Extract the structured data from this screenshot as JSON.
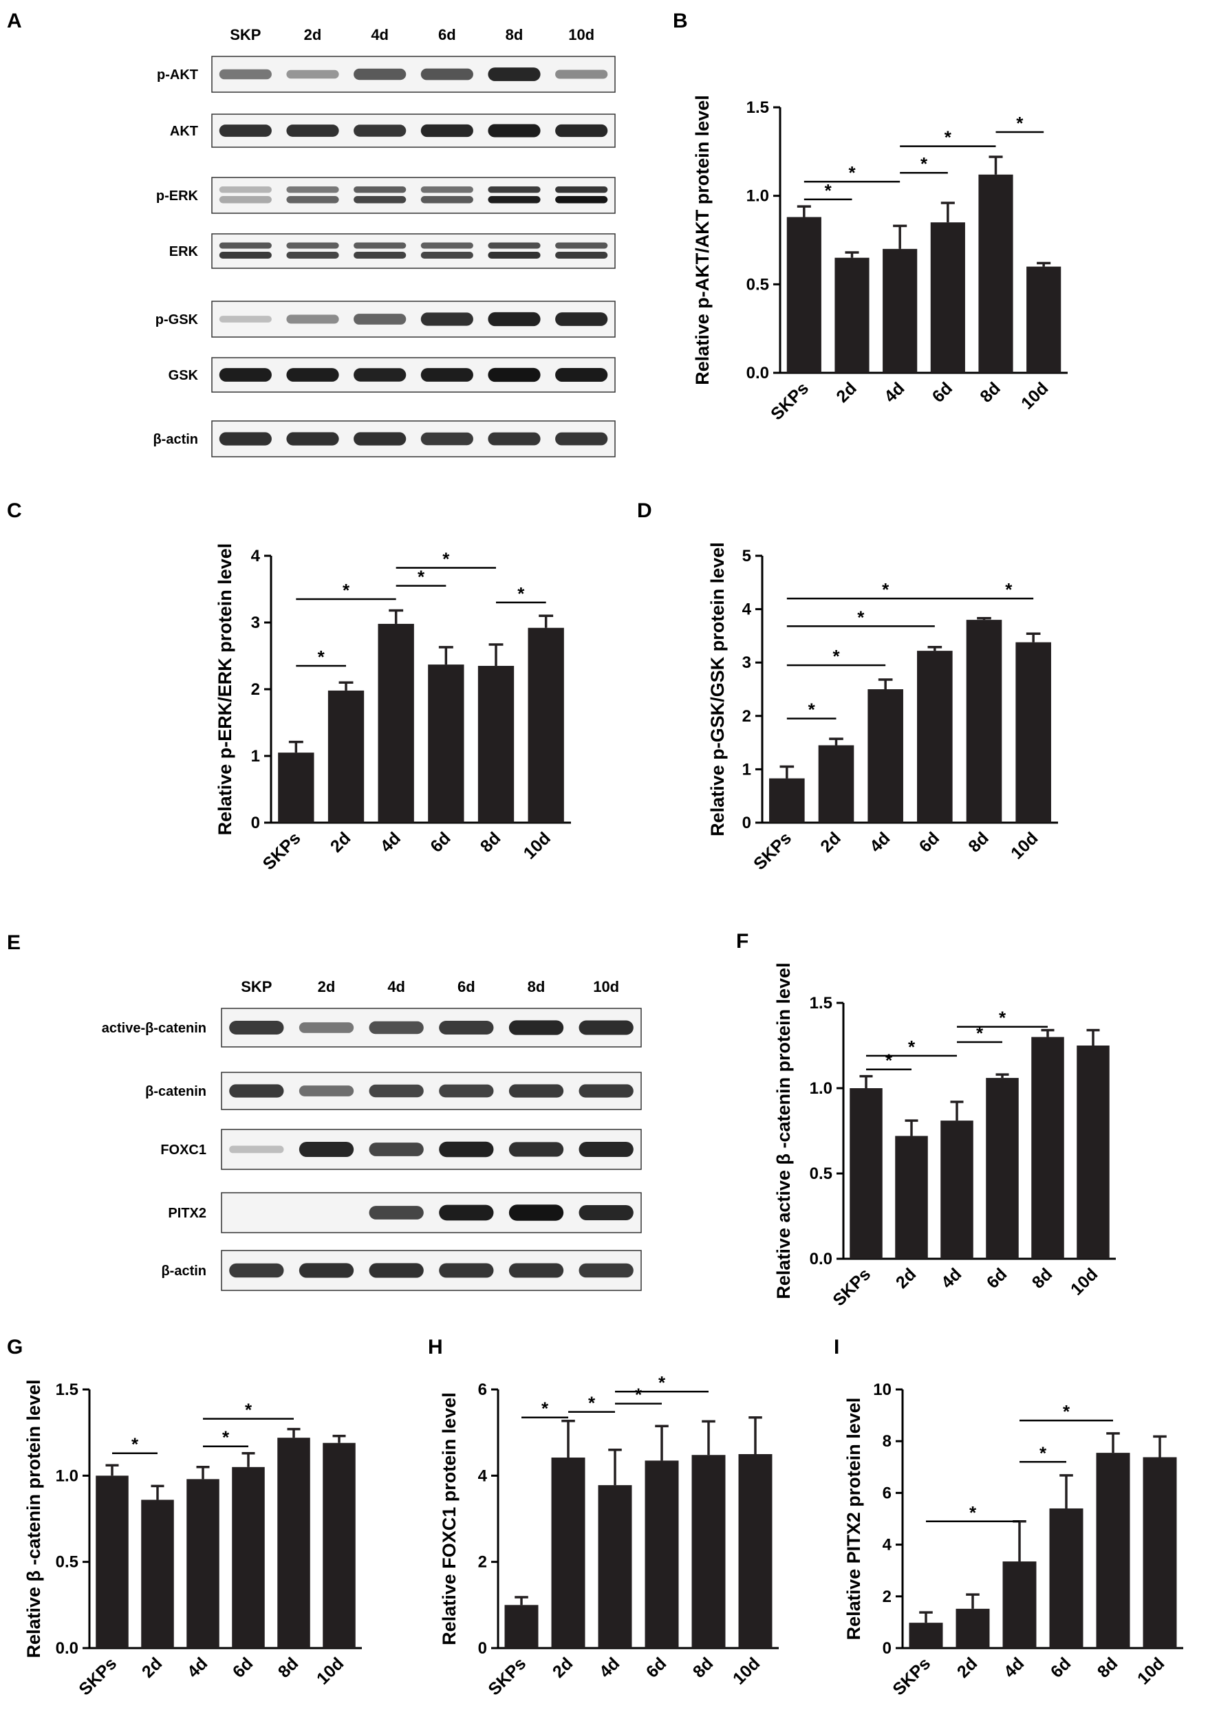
{
  "panel_letters": [
    "A",
    "B",
    "C",
    "D",
    "E",
    "F",
    "G",
    "H",
    "I"
  ],
  "blot_A": {
    "columns": [
      "SKP",
      "2d",
      "4d",
      "6d",
      "8d",
      "10d"
    ],
    "rows": [
      {
        "label": "p-AKT",
        "intensities": [
          0.45,
          0.3,
          0.6,
          0.62,
          0.85,
          0.35
        ],
        "doublet": false
      },
      {
        "label": "AKT",
        "intensities": [
          0.8,
          0.8,
          0.78,
          0.85,
          0.9,
          0.85
        ],
        "doublet": false
      },
      {
        "label": "p-ERK",
        "intensities": [
          0.2,
          0.55,
          0.7,
          0.6,
          0.9,
          0.95
        ],
        "doublet": true
      },
      {
        "label": "ERK",
        "intensities": [
          0.75,
          0.7,
          0.72,
          0.7,
          0.8,
          0.75
        ],
        "doublet": true
      },
      {
        "label": "p-GSK",
        "intensities": [
          0.1,
          0.35,
          0.55,
          0.8,
          0.88,
          0.85
        ],
        "doublet": false
      },
      {
        "label": "GSK",
        "intensities": [
          0.9,
          0.9,
          0.88,
          0.9,
          0.95,
          0.92
        ],
        "doublet": false
      },
      {
        "label": "β-actin",
        "intensities": [
          0.8,
          0.8,
          0.8,
          0.75,
          0.78,
          0.78
        ],
        "doublet": false
      }
    ]
  },
  "blot_E": {
    "columns": [
      "SKP",
      "2d",
      "4d",
      "6d",
      "8d",
      "10d"
    ],
    "rows": [
      {
        "label": "active-β-catenin",
        "intensities": [
          0.75,
          0.45,
          0.65,
          0.75,
          0.85,
          0.82
        ],
        "doublet": false
      },
      {
        "label": "β-catenin",
        "intensities": [
          0.75,
          0.5,
          0.7,
          0.72,
          0.75,
          0.75
        ],
        "doublet": false
      },
      {
        "label": "FOXC1",
        "intensities": [
          0.1,
          0.85,
          0.7,
          0.88,
          0.8,
          0.85
        ],
        "doublet": false
      },
      {
        "label": "PITX2",
        "intensities": [
          0.0,
          0.0,
          0.7,
          0.9,
          0.95,
          0.85
        ],
        "doublet": false
      },
      {
        "label": "β-actin",
        "intensities": [
          0.75,
          0.8,
          0.8,
          0.78,
          0.78,
          0.75
        ],
        "doublet": false
      }
    ]
  },
  "chart_data": [
    {
      "panel": "B",
      "type": "bar",
      "ylabel": "Relative p-AKT/AKT protein level",
      "categories": [
        "SKPs",
        "2d",
        "4d",
        "6d",
        "8d",
        "10d"
      ],
      "values": [
        0.88,
        0.65,
        0.7,
        0.85,
        1.12,
        0.6
      ],
      "errors": [
        0.06,
        0.03,
        0.13,
        0.11,
        0.1,
        0.02
      ],
      "ylim": [
        0,
        1.5
      ],
      "yticks": [
        "0.0",
        "0.5",
        "1.0",
        "1.5"
      ],
      "significance": [
        {
          "from": 0,
          "to": 1,
          "y": 0.98
        },
        {
          "from": 0,
          "to": 2,
          "y": 1.08
        },
        {
          "from": 2,
          "to": 3,
          "y": 1.13
        },
        {
          "from": 2,
          "to": 4,
          "y": 1.28
        },
        {
          "from": 4,
          "to": 5,
          "y": 1.36
        }
      ]
    },
    {
      "panel": "C",
      "type": "bar",
      "ylabel": "Relative p-ERK/ERK protein level",
      "categories": [
        "SKPs",
        "2d",
        "4d",
        "6d",
        "8d",
        "10d"
      ],
      "values": [
        1.05,
        1.98,
        2.98,
        2.37,
        2.35,
        2.92
      ],
      "errors": [
        0.16,
        0.12,
        0.2,
        0.26,
        0.32,
        0.18
      ],
      "ylim": [
        0,
        4
      ],
      "yticks": [
        "0",
        "1",
        "2",
        "3",
        "4"
      ],
      "significance": [
        {
          "from": 0,
          "to": 1,
          "y": 2.35
        },
        {
          "from": 0,
          "to": 2,
          "y": 3.35
        },
        {
          "from": 2,
          "to": 3,
          "y": 3.55
        },
        {
          "from": 2,
          "to": 4,
          "y": 3.82
        },
        {
          "from": 4,
          "to": 5,
          "y": 3.3
        }
      ]
    },
    {
      "panel": "D",
      "type": "bar",
      "ylabel": "Relative p-GSK/GSK protein level",
      "categories": [
        "SKPs",
        "2d",
        "4d",
        "6d",
        "8d",
        "10d"
      ],
      "values": [
        0.83,
        1.45,
        2.5,
        3.22,
        3.8,
        3.38
      ],
      "errors": [
        0.22,
        0.12,
        0.18,
        0.07,
        0.03,
        0.16
      ],
      "ylim": [
        0,
        5
      ],
      "yticks": [
        "0",
        "1",
        "2",
        "3",
        "4",
        "5"
      ],
      "significance": [
        {
          "from": 0,
          "to": 1,
          "y": 1.95
        },
        {
          "from": 0,
          "to": 2,
          "y": 2.95
        },
        {
          "from": 0,
          "to": 3,
          "y": 3.68
        },
        {
          "from": 0,
          "to": 4,
          "y": 4.2
        },
        {
          "from": 4,
          "to": 5,
          "y": 4.2
        }
      ]
    },
    {
      "panel": "F",
      "type": "bar",
      "ylabel": "Relative active β -catenin protein level",
      "categories": [
        "SKPs",
        "2d",
        "4d",
        "6d",
        "8d",
        "10d"
      ],
      "values": [
        1.0,
        0.72,
        0.81,
        1.06,
        1.3,
        1.25
      ],
      "errors": [
        0.07,
        0.09,
        0.11,
        0.02,
        0.04,
        0.09
      ],
      "ylim": [
        0,
        1.5
      ],
      "yticks": [
        "0.0",
        "0.5",
        "1.0",
        "1.5"
      ],
      "significance": [
        {
          "from": 0,
          "to": 1,
          "y": 1.11
        },
        {
          "from": 0,
          "to": 2,
          "y": 1.19
        },
        {
          "from": 2,
          "to": 3,
          "y": 1.27
        },
        {
          "from": 2,
          "to": 4,
          "y": 1.36
        }
      ]
    },
    {
      "panel": "G",
      "type": "bar",
      "ylabel": "Relative β -catenin protein level",
      "categories": [
        "SKPs",
        "2d",
        "4d",
        "6d",
        "8d",
        "10d"
      ],
      "values": [
        1.0,
        0.86,
        0.98,
        1.05,
        1.22,
        1.19
      ],
      "errors": [
        0.06,
        0.08,
        0.07,
        0.08,
        0.05,
        0.04
      ],
      "ylim": [
        0,
        1.5
      ],
      "yticks": [
        "0.0",
        "0.5",
        "1.0",
        "1.5"
      ],
      "significance": [
        {
          "from": 0,
          "to": 1,
          "y": 1.13
        },
        {
          "from": 2,
          "to": 3,
          "y": 1.17
        },
        {
          "from": 2,
          "to": 4,
          "y": 1.33
        }
      ]
    },
    {
      "panel": "H",
      "type": "bar",
      "ylabel": "Relative FOXC1 protein level",
      "categories": [
        "SKPs",
        "2d",
        "4d",
        "6d",
        "8d",
        "10d"
      ],
      "values": [
        1.0,
        4.42,
        3.78,
        4.35,
        4.48,
        4.5
      ],
      "errors": [
        0.18,
        0.85,
        0.82,
        0.8,
        0.78,
        0.85
      ],
      "ylim": [
        0,
        6
      ],
      "yticks": [
        "0",
        "2",
        "4",
        "6"
      ],
      "significance": [
        {
          "from": 0,
          "to": 1,
          "y": 5.35
        },
        {
          "from": 1,
          "to": 2,
          "y": 5.48
        },
        {
          "from": 2,
          "to": 3,
          "y": 5.67
        },
        {
          "from": 2,
          "to": 4,
          "y": 5.95
        }
      ]
    },
    {
      "panel": "I",
      "type": "bar",
      "ylabel": "Relative PITX2 protein level",
      "categories": [
        "SKPs",
        "2d",
        "4d",
        "6d",
        "8d",
        "10d"
      ],
      "values": [
        0.98,
        1.52,
        3.35,
        5.4,
        7.55,
        7.38
      ],
      "errors": [
        0.4,
        0.55,
        1.55,
        1.28,
        0.75,
        0.8
      ],
      "ylim": [
        0,
        10
      ],
      "yticks": [
        "0",
        "2",
        "4",
        "6",
        "8",
        "10"
      ],
      "significance": [
        {
          "from": 0,
          "to": 2,
          "y": 4.9
        },
        {
          "from": 2,
          "to": 3,
          "y": 7.2
        },
        {
          "from": 2,
          "to": 4,
          "y": 8.8
        }
      ]
    }
  ],
  "star": "*",
  "colors": {
    "bar": "#231f20",
    "text": "#000000",
    "blot_frame": "#333333",
    "band": "#141414",
    "lane_bg": "#f4f4f4"
  }
}
